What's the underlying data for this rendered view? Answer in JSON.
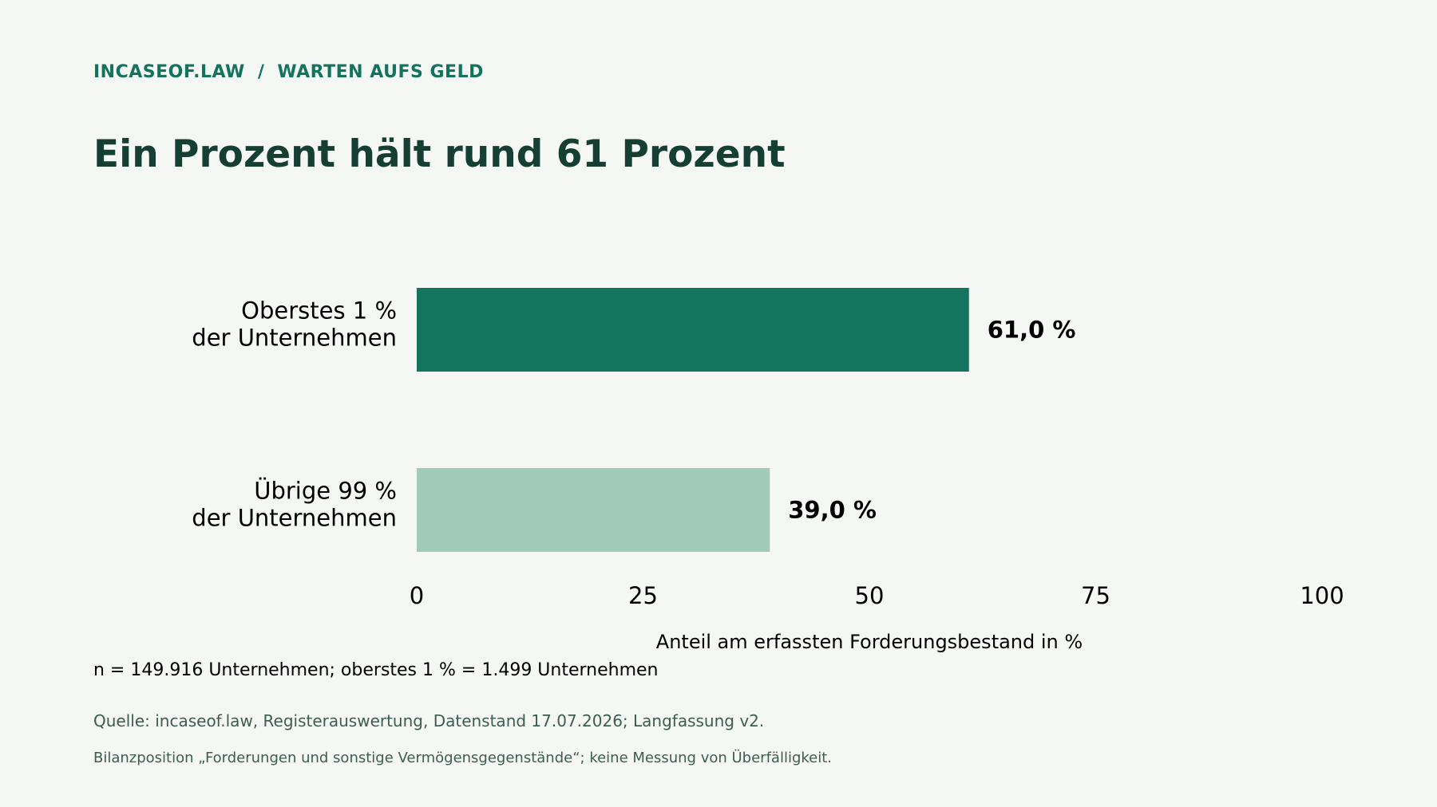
{
  "header": {
    "kicker_left": "INCASEOF.LAW",
    "kicker_sep": "/",
    "kicker_right": "WARTEN AUFS GELD",
    "title": "Ein Prozent hält rund 61 Prozent"
  },
  "chart_data": {
    "type": "bar",
    "orientation": "horizontal",
    "categories": [
      [
        "Oberstes 1 %",
        "der Unternehmen"
      ],
      [
        "Übrige 99 %",
        "der Unternehmen"
      ]
    ],
    "values": [
      61.0,
      39.0
    ],
    "value_labels": [
      "61,0 %",
      "39,0 %"
    ],
    "colors": [
      "#13755e",
      "#a1cab9"
    ],
    "xlabel": "Anteil am erfassten Forderungsbestand in %",
    "ylabel": "",
    "xlim": [
      0,
      100
    ],
    "xticks": [
      0,
      25,
      50,
      75,
      100
    ],
    "xtick_labels": [
      "0",
      "25",
      "50",
      "75",
      "100"
    ],
    "grid": false,
    "legend": "none"
  },
  "notes": {
    "sample": "n = 149.916 Unternehmen; oberstes 1 % = 1.499 Unternehmen",
    "source": "Quelle: incaseof.law, Registerauswertung, Datenstand 17.07.2026; Langfassung v2.",
    "scope": "Bilanzposition „Forderungen und sonstige Vermögensgegenstände“; keine Messung von Überfälligkeit."
  }
}
